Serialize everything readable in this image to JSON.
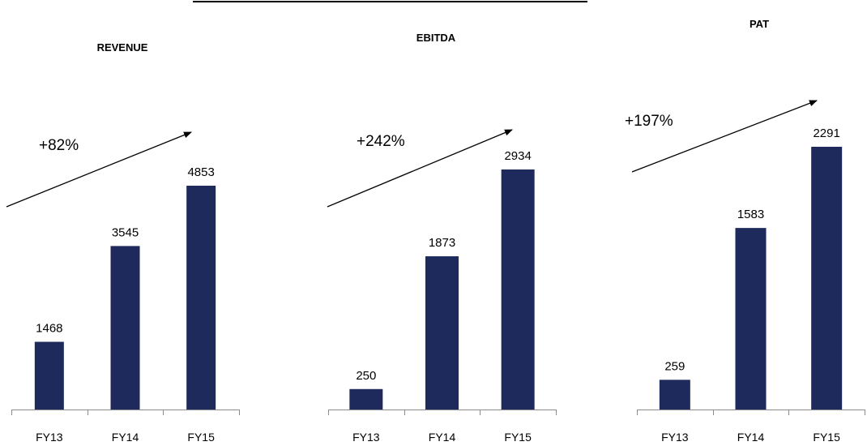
{
  "chart_data": [
    {
      "type": "bar",
      "title": "REVENUE",
      "categories": [
        "FY13",
        "FY14",
        "FY15"
      ],
      "values": [
        1468,
        3545,
        4853
      ],
      "growth_label": "+82%",
      "color": "#1f2a5c"
    },
    {
      "type": "bar",
      "title": "EBITDA",
      "categories": [
        "FY13",
        "FY14",
        "FY15"
      ],
      "values": [
        250,
        1873,
        2934
      ],
      "growth_label": "+242%",
      "color": "#1f2a5c"
    },
    {
      "type": "bar",
      "title": "PAT",
      "categories": [
        "FY13",
        "FY14",
        "FY15"
      ],
      "values": [
        259,
        1583,
        2291
      ],
      "growth_label": "+197%",
      "color": "#1f2a5c"
    }
  ]
}
